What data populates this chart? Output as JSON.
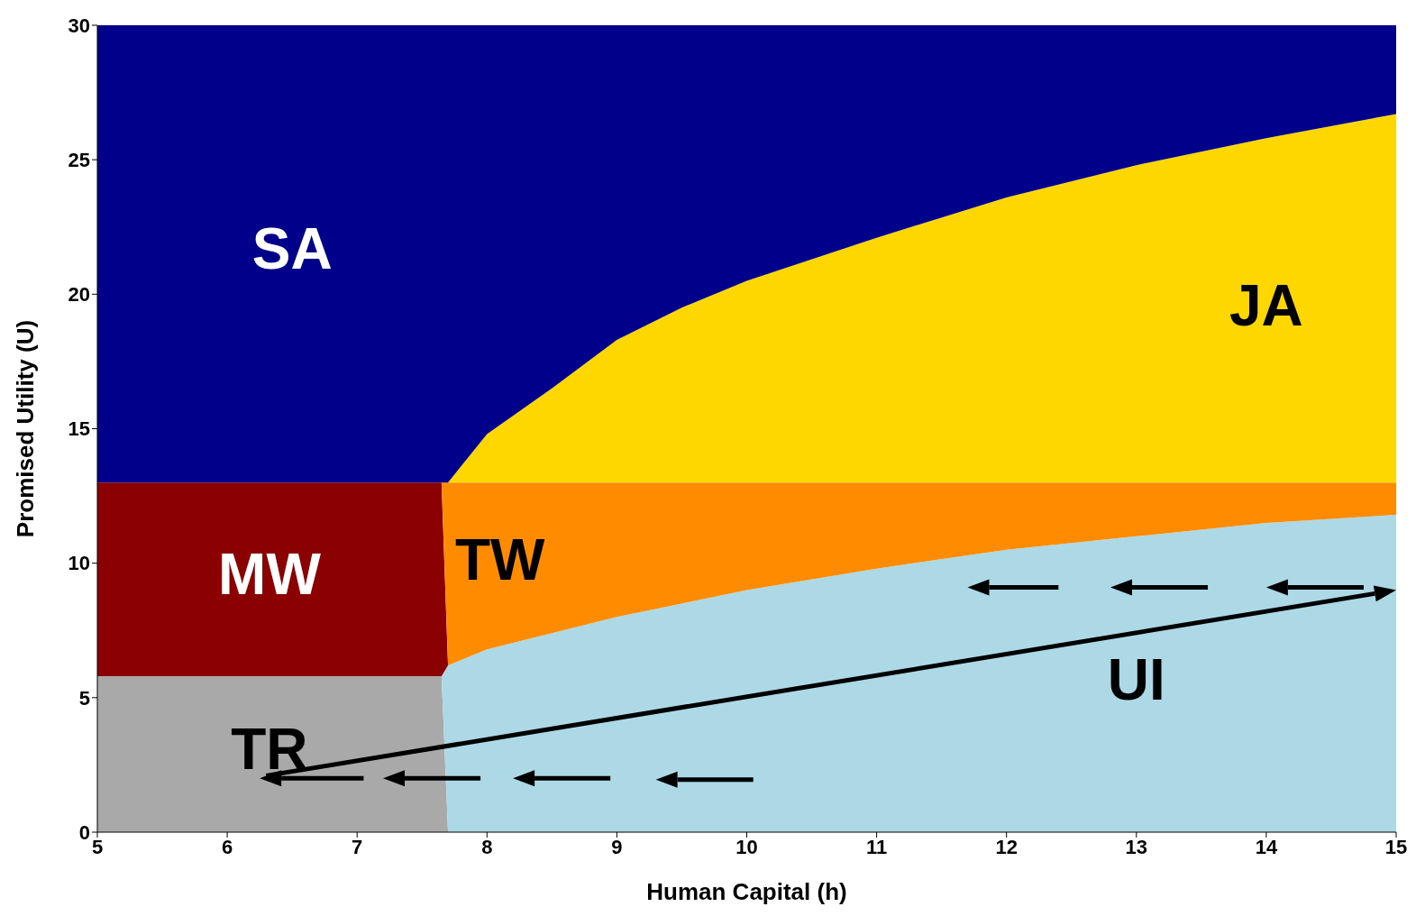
{
  "chart_data": {
    "type": "area",
    "stacked": true,
    "xlabel": "Human Capital (h)",
    "ylabel": "Promised Utility (U)",
    "xlim": [
      5,
      15
    ],
    "xticks": [
      5,
      6,
      7,
      8,
      9,
      10,
      11,
      12,
      13,
      14,
      15
    ],
    "ylim": [
      0,
      30
    ],
    "yticks": [
      0,
      5,
      10,
      15,
      20,
      25,
      30
    ],
    "x": [
      5,
      6,
      7,
      7.65,
      7.7,
      8,
      8.5,
      9,
      9.5,
      10,
      11,
      12,
      13,
      14,
      15
    ],
    "series": [
      {
        "name": "TR",
        "color": "#a9a9a9",
        "values": [
          5.8,
          5.8,
          5.8,
          5.8,
          0,
          0,
          0,
          0,
          0,
          0,
          0,
          0,
          0,
          0,
          0
        ]
      },
      {
        "name": "UI",
        "color": "#add8e6",
        "values": [
          0,
          0,
          0,
          0,
          6.2,
          6.8,
          7.4,
          8.0,
          8.5,
          9.0,
          9.8,
          10.5,
          11.0,
          11.5,
          11.8
        ]
      },
      {
        "name": "MW",
        "color": "#8b0000",
        "values": [
          7.2,
          7.2,
          7.2,
          7.2,
          0,
          0,
          0,
          0,
          0,
          0,
          0,
          0,
          0,
          0,
          0
        ]
      },
      {
        "name": "TW",
        "color": "#ff8c00",
        "values": [
          0,
          0,
          0,
          0,
          6.8,
          6.2,
          5.6,
          5.0,
          4.5,
          4.0,
          3.2,
          2.5,
          2.0,
          1.5,
          1.2
        ]
      },
      {
        "name": "JA",
        "color": "#ffd700",
        "values": [
          0,
          0,
          0,
          0,
          0,
          1.8,
          3.5,
          5.3,
          6.5,
          7.5,
          9.1,
          10.6,
          11.8,
          12.8,
          13.7
        ]
      },
      {
        "name": "SA",
        "color": "#00008b",
        "values": [
          17,
          17,
          17,
          17,
          17,
          15.2,
          13.5,
          11.7,
          10.5,
          9.5,
          7.9,
          6.4,
          5.2,
          4.2,
          3.3
        ]
      }
    ]
  }
}
